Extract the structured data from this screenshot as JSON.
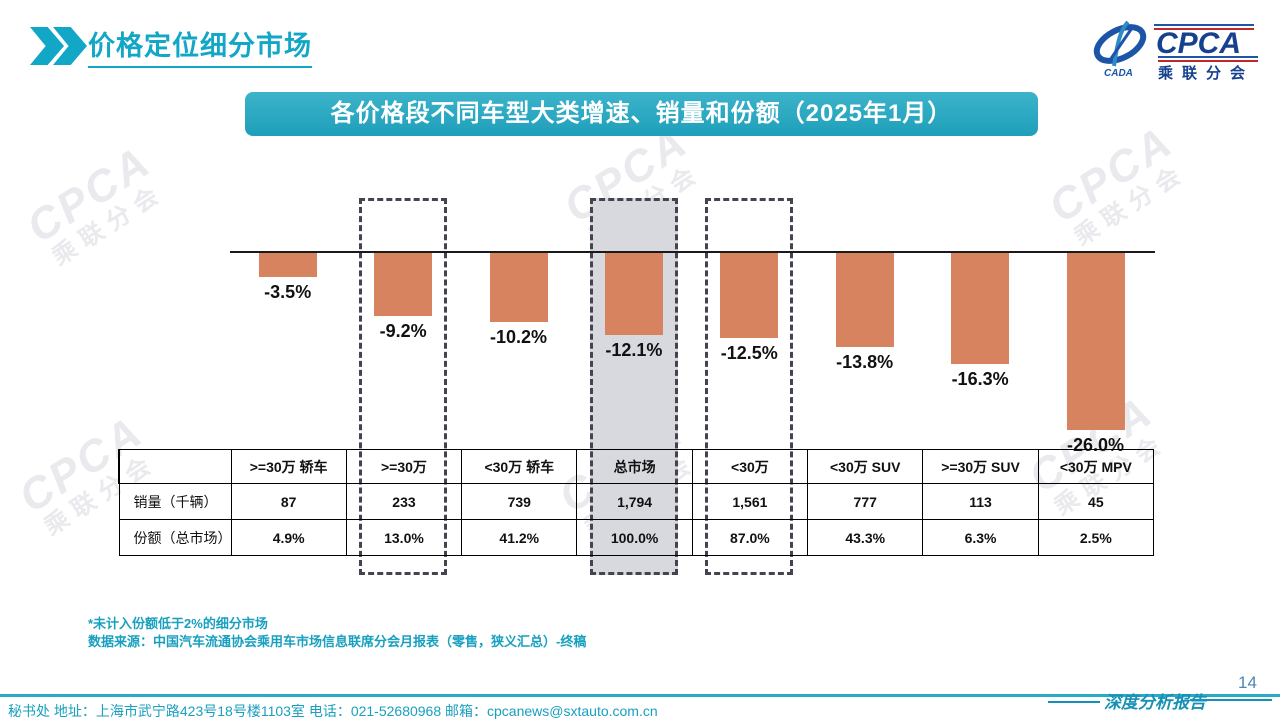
{
  "header": {
    "title": "价格定位细分市场"
  },
  "logo": {
    "cpca": "CPCA",
    "cada": "CADA",
    "name": "乘联分会"
  },
  "banner": {
    "title": "各价格段不同车型大类增速、销量和份额（2025年1月）"
  },
  "chart_data": {
    "type": "bar",
    "title": "各价格段不同车型大类增速、销量和份额（2025年1月）",
    "categories": [
      ">=30万 轿车",
      ">=30万",
      "<30万 轿车",
      "总市场",
      "<30万",
      "<30万 SUV",
      ">=30万 SUV",
      "<30万 MPV"
    ],
    "series": [
      {
        "name": "增速",
        "unit": "%",
        "values": [
          -3.5,
          -9.2,
          -10.2,
          -12.1,
          -12.5,
          -13.8,
          -16.3,
          -26.0
        ]
      },
      {
        "name": "销量（千辆）",
        "unit": "千辆",
        "values": [
          87,
          233,
          739,
          1794,
          1561,
          777,
          113,
          45
        ]
      },
      {
        "name": "份额（总市场）",
        "unit": "%",
        "values": [
          4.9,
          13.0,
          41.2,
          100.0,
          87.0,
          43.3,
          6.3,
          2.5
        ]
      }
    ],
    "bar_labels": [
      "-3.5%",
      "-9.2%",
      "-10.2%",
      "-12.1%",
      "-12.5%",
      "-13.8%",
      "-16.3%",
      "-26.0%"
    ],
    "highlighted": [
      ">=30万",
      "总市场",
      "<30万"
    ],
    "filled_highlight": "总市场",
    "bar_color": "#D7835F",
    "highlight_fill": "#D8D8DF",
    "ylim": [
      -28,
      8
    ],
    "grid": false,
    "legend": false
  },
  "table": {
    "corner_label": "",
    "columns": [
      ">=30万 轿车",
      ">=30万",
      "<30万 轿车",
      "总市场",
      "<30万",
      "<30万 SUV",
      ">=30万 SUV",
      "<30万 MPV"
    ],
    "row_headers": [
      "销量（千辆）",
      "份额（总市场）"
    ],
    "rows": [
      [
        "87",
        "233",
        "739",
        "1,794",
        "1,561",
        "777",
        "113",
        "45"
      ],
      [
        "4.9%",
        "13.0%",
        "41.2%",
        "100.0%",
        "87.0%",
        "43.3%",
        "6.3%",
        "2.5%"
      ]
    ]
  },
  "notes": {
    "line1": "*未计入份额低于2%的细分市场",
    "line2": "数据来源：中国汽车流通协会乘用车市场信息联席分会月报表（零售，狭义汇总）-终稿"
  },
  "footer": {
    "contact": "秘书处  地址：上海市武宁路423号18号楼1103室 电话：021-52680968   邮箱：cpcanews@sxtauto.com.cn",
    "report_label": "深度分析报告",
    "page_number": "14"
  },
  "watermark": {
    "line1": "CPCA",
    "line2": "乘联分会"
  },
  "colors": {
    "teal": "#12A7C6",
    "banner_teal": "#2AA4BC",
    "bar_salmon": "#D7835F",
    "highlight_gray": "#D8D8DF",
    "dash_border": "#44444E",
    "note_teal": "#18A0BE",
    "page_blue": "#4E86B4",
    "logo_blue": "#16418F",
    "logo_red": "#C0272D"
  }
}
